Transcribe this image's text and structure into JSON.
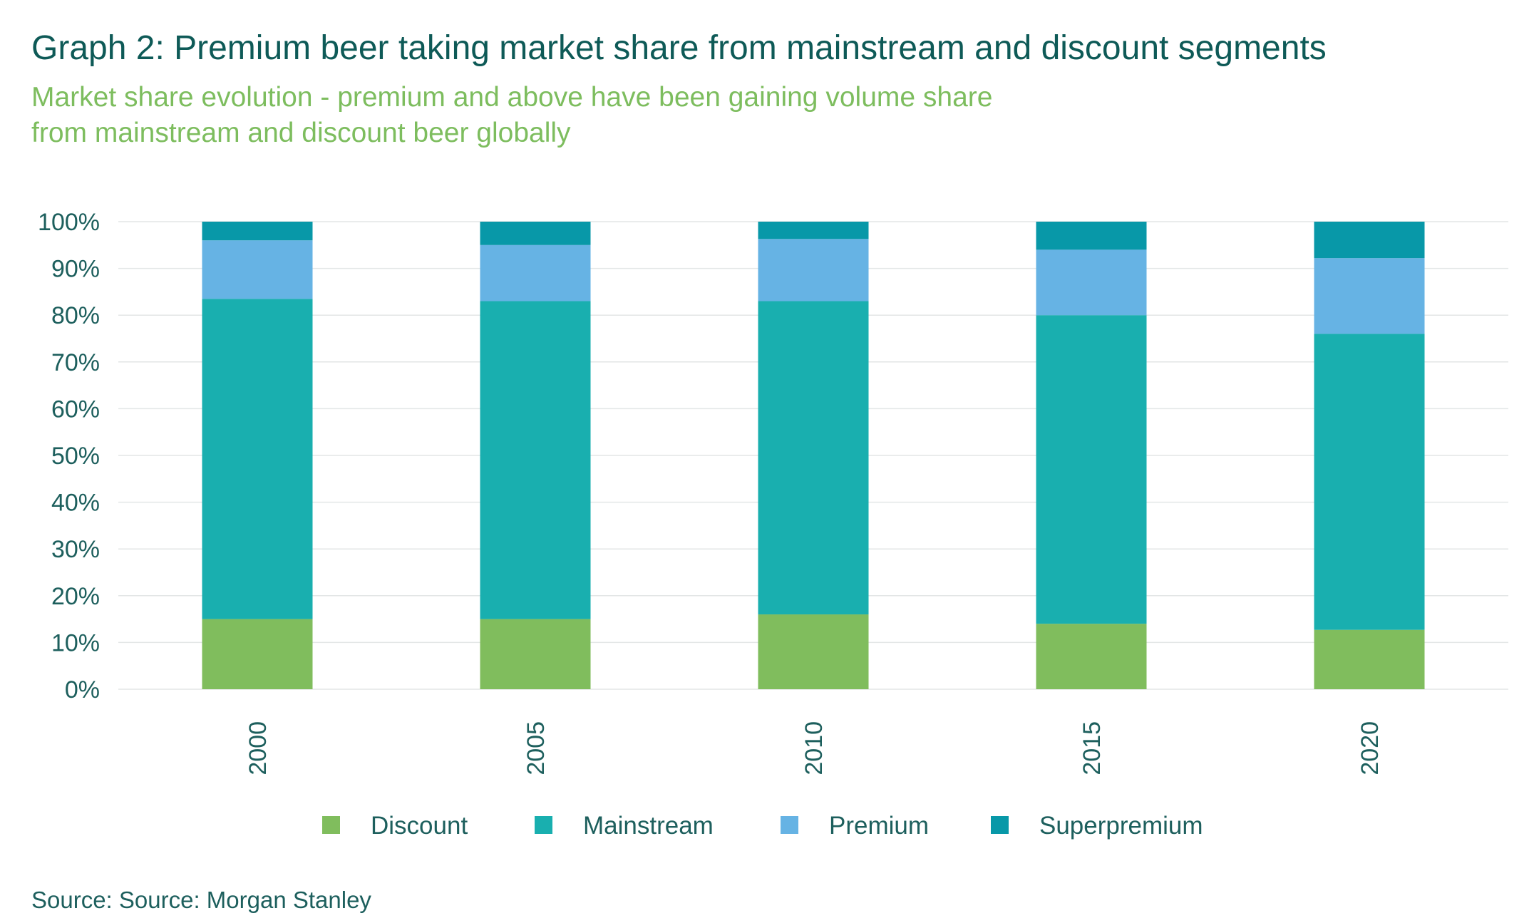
{
  "header": {
    "title": "Graph 2: Premium beer taking market share from mainstream and discount segments",
    "subtitle": "Market share evolution - premium and above have been gaining volume share from mainstream and discount beer globally"
  },
  "footer": {
    "source": "Source: Source: Morgan Stanley"
  },
  "chart_data": {
    "type": "bar",
    "stacked": true,
    "categories": [
      "2000",
      "2005",
      "2010",
      "2015",
      "2020"
    ],
    "series": [
      {
        "name": "Discount",
        "color": "#80bd5d",
        "values": [
          15,
          15,
          16,
          14,
          12.7
        ]
      },
      {
        "name": "Mainstream",
        "color": "#19afaf",
        "values": [
          68.5,
          68,
          67,
          66,
          63.3
        ]
      },
      {
        "name": "Premium",
        "color": "#66b3e4",
        "values": [
          12.5,
          12,
          13.3,
          14,
          16.2
        ]
      },
      {
        "name": "Superpremium",
        "color": "#0898a8",
        "values": [
          4,
          5,
          3.7,
          6,
          7.8
        ]
      }
    ],
    "ylim": [
      0,
      100
    ],
    "yticks": [
      "0%",
      "10%",
      "20%",
      "30%",
      "40%",
      "50%",
      "60%",
      "70%",
      "80%",
      "90%",
      "100%"
    ],
    "grid": true,
    "legend_position": "bottom"
  }
}
